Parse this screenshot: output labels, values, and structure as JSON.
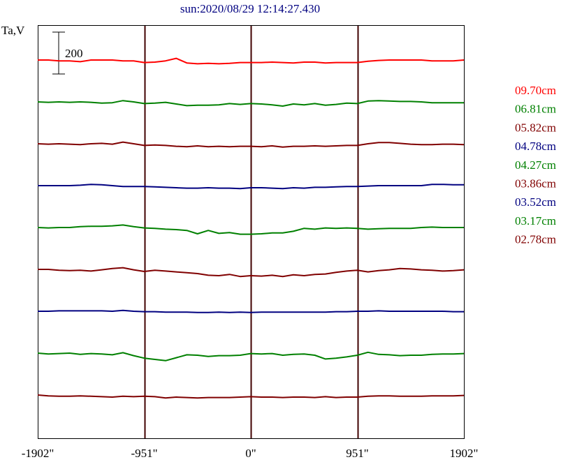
{
  "chart_data": {
    "type": "line",
    "title": "sun:2020/08/29 12:14:27.430",
    "ylabel": "Ta,V",
    "scale_bar_label": "200",
    "xlim": [
      -1902,
      1902
    ],
    "x_ticks": [
      {
        "value": -1902,
        "label": "-1902\""
      },
      {
        "value": -951,
        "label": "-951\""
      },
      {
        "value": 0,
        "label": "0\""
      },
      {
        "value": 951,
        "label": "951\""
      },
      {
        "value": 1902,
        "label": "1902\""
      }
    ],
    "vertical_lines_at": [
      -951,
      0,
      951
    ],
    "grid": false,
    "legend_position": "right",
    "series_spacing_ta": 200,
    "x": [
      -1902,
      -1807,
      -1712,
      -1617,
      -1522,
      -1427,
      -1331,
      -1236,
      -1141,
      -1046,
      -951,
      -856,
      -761,
      -666,
      -571,
      -476,
      -380,
      -285,
      -190,
      -95,
      0,
      95,
      190,
      285,
      380,
      476,
      571,
      666,
      761,
      856,
      951,
      1046,
      1141,
      1236,
      1331,
      1427,
      1522,
      1617,
      1712,
      1807,
      1902
    ],
    "series": [
      {
        "name": "09.70cm",
        "color": "#ff0000",
        "values": [
          0,
          0,
          -4,
          -4,
          -8,
          0,
          0,
          0,
          -4,
          -4,
          -12,
          -10,
          -4,
          8,
          -14,
          -18,
          -16,
          -18,
          -16,
          -12,
          -12,
          -12,
          -10,
          -12,
          -14,
          -10,
          -10,
          -14,
          -12,
          -12,
          -12,
          -6,
          -2,
          0,
          0,
          0,
          0,
          -4,
          -4,
          -4,
          0
        ]
      },
      {
        "name": "06.81cm",
        "color": "#008000",
        "values": [
          0,
          -2,
          0,
          -2,
          0,
          -2,
          -6,
          -4,
          6,
          0,
          -8,
          -6,
          -2,
          -10,
          -18,
          -16,
          -16,
          -14,
          -8,
          -12,
          -8,
          -10,
          -14,
          -20,
          -10,
          -14,
          -8,
          -16,
          -12,
          -6,
          -8,
          4,
          6,
          4,
          2,
          2,
          0,
          -4,
          -4,
          -4,
          -4
        ]
      },
      {
        "name": "05.82cm",
        "color": "#800000",
        "values": [
          0,
          -2,
          0,
          -2,
          -4,
          0,
          2,
          -2,
          8,
          0,
          -8,
          -6,
          -8,
          -12,
          -14,
          -10,
          -14,
          -12,
          -14,
          -12,
          -12,
          -14,
          -10,
          -16,
          -12,
          -12,
          -10,
          -12,
          -10,
          -8,
          -8,
          0,
          6,
          6,
          2,
          -2,
          -4,
          -4,
          -2,
          -2,
          -4
        ]
      },
      {
        "name": "04.78cm",
        "color": "#000080",
        "values": [
          0,
          0,
          0,
          0,
          2,
          6,
          4,
          0,
          -4,
          -4,
          -4,
          -6,
          -8,
          -10,
          -12,
          -12,
          -10,
          -12,
          -12,
          -14,
          -10,
          -10,
          -12,
          -14,
          -10,
          -12,
          -8,
          -8,
          -6,
          -4,
          -4,
          -2,
          0,
          0,
          0,
          0,
          0,
          6,
          6,
          4,
          4
        ]
      },
      {
        "name": "04.27cm",
        "color": "#008000",
        "values": [
          0,
          -2,
          0,
          0,
          4,
          6,
          6,
          8,
          12,
          4,
          -2,
          -4,
          -8,
          -10,
          -14,
          -30,
          -14,
          -28,
          -24,
          -32,
          -32,
          -30,
          -26,
          -26,
          -18,
          -4,
          -8,
          -2,
          -4,
          -2,
          -4,
          -8,
          -6,
          -4,
          -4,
          -4,
          0,
          2,
          0,
          0,
          0
        ]
      },
      {
        "name": "03.86cm",
        "color": "#800000",
        "values": [
          0,
          0,
          -4,
          -6,
          -4,
          -8,
          -2,
          4,
          8,
          -2,
          -10,
          -4,
          -8,
          -12,
          -16,
          -20,
          -28,
          -30,
          -24,
          -34,
          -30,
          -32,
          -28,
          -34,
          -26,
          -30,
          -24,
          -22,
          -14,
          -8,
          -4,
          -12,
          -6,
          -2,
          4,
          2,
          -2,
          -4,
          -8,
          -6,
          -2
        ]
      },
      {
        "name": "03.52cm",
        "color": "#000080",
        "values": [
          0,
          0,
          2,
          2,
          2,
          2,
          2,
          0,
          4,
          0,
          -2,
          -2,
          -4,
          -4,
          -4,
          -6,
          -6,
          -4,
          -6,
          -4,
          -6,
          -4,
          -4,
          -4,
          -4,
          -4,
          -4,
          -4,
          -2,
          -2,
          0,
          0,
          2,
          0,
          0,
          0,
          0,
          0,
          0,
          -2,
          -2
        ]
      },
      {
        "name": "03.17cm",
        "color": "#008000",
        "values": [
          0,
          -4,
          -2,
          0,
          -6,
          -2,
          -4,
          -8,
          2,
          -12,
          -24,
          -30,
          -36,
          -22,
          -8,
          -10,
          -16,
          -12,
          -12,
          -10,
          -2,
          -4,
          -2,
          -10,
          -6,
          -4,
          -10,
          -28,
          -24,
          -18,
          -10,
          4,
          -6,
          -8,
          -12,
          -10,
          -10,
          -6,
          -4,
          -4,
          -2
        ]
      },
      {
        "name": "02.78cm",
        "color": "#800000",
        "values": [
          0,
          -4,
          -6,
          -6,
          -4,
          -6,
          -8,
          -10,
          -6,
          -8,
          -6,
          -8,
          -14,
          -10,
          -12,
          -14,
          -12,
          -12,
          -12,
          -10,
          -8,
          -10,
          -10,
          -12,
          -10,
          -10,
          -12,
          -8,
          -12,
          -10,
          -10,
          -6,
          -4,
          -4,
          -6,
          -6,
          -6,
          -4,
          -4,
          -4,
          -2
        ]
      }
    ]
  }
}
